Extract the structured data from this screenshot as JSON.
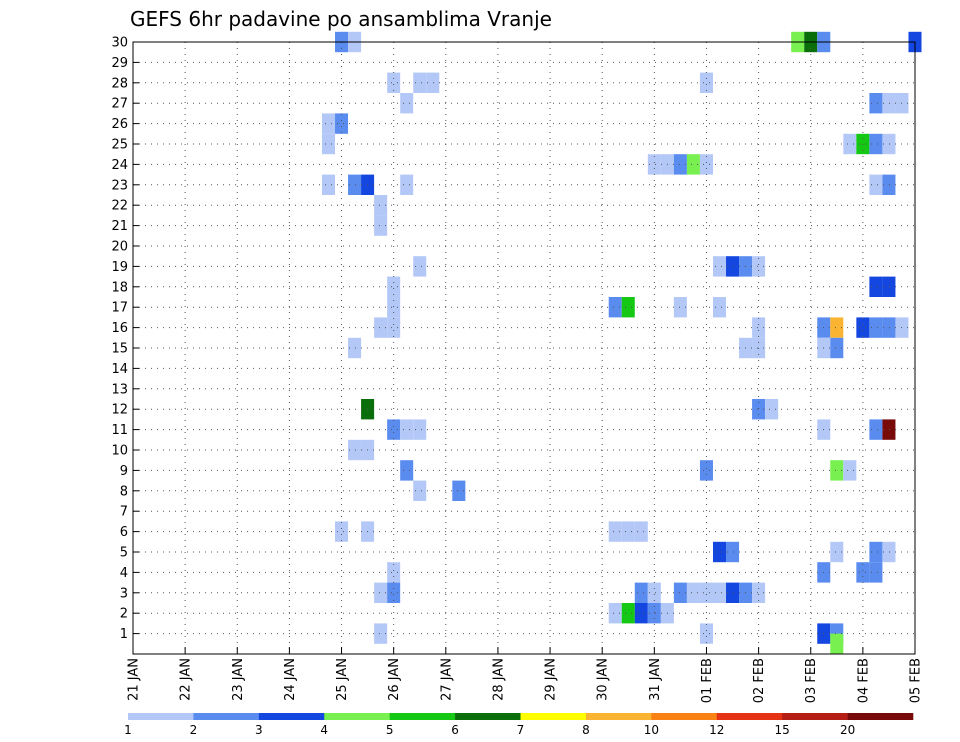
{
  "chart_data": {
    "type": "heatmap",
    "title": "GEFS 6hr padavine po ansamblima Vranje",
    "y_categories": [
      "1",
      "2",
      "3",
      "4",
      "5",
      "6",
      "7",
      "8",
      "9",
      "10",
      "11",
      "12",
      "13",
      "14",
      "15",
      "16",
      "17",
      "18",
      "19",
      "20",
      "21",
      "22",
      "23",
      "24",
      "25",
      "26",
      "27",
      "28",
      "29",
      "30"
    ],
    "x_categories": [
      "21 JAN",
      "22 JAN",
      "23 JAN",
      "24 JAN",
      "25 JAN",
      "26 JAN",
      "27 JAN",
      "28 JAN",
      "29 JAN",
      "30 JAN",
      "31 JAN",
      "01 FEB",
      "02 FEB",
      "03 FEB",
      "04 FEB",
      "05 FEB"
    ],
    "x_step": "6 hours",
    "colorbar": {
      "labels": [
        "1",
        "2",
        "3",
        "4",
        "5",
        "6",
        "7",
        "8",
        "10",
        "12",
        "15",
        "20"
      ],
      "colors": [
        "#b4c8f8",
        "#5a8cf0",
        "#1446e0",
        "#78f050",
        "#14c814",
        "#0a6e0a",
        "#ffff00",
        "#fab432",
        "#fa8214",
        "#e63214",
        "#b41e14",
        "#780a0a"
      ]
    },
    "cells": [
      {
        "y": 30,
        "x": [
          25.0,
          25.25
        ],
        "v": [
          2,
          1
        ]
      },
      {
        "y": 30,
        "x": [
          33.75,
          34.0,
          34.25
        ],
        "v": [
          4,
          6,
          2
        ]
      },
      {
        "y": 30,
        "x": [
          36.0
        ],
        "v": [
          3
        ]
      },
      {
        "y": 28,
        "x": [
          26.0,
          26.5,
          26.75
        ],
        "v": [
          1,
          1,
          1
        ]
      },
      {
        "y": 28,
        "x": [
          32.0
        ],
        "v": [
          1
        ]
      },
      {
        "y": 27,
        "x": [
          26.25
        ],
        "v": [
          1
        ]
      },
      {
        "y": 27,
        "x": [
          35.25,
          35.5,
          35.75
        ],
        "v": [
          2,
          1,
          1
        ]
      },
      {
        "y": 26,
        "x": [
          24.75,
          25.0
        ],
        "v": [
          1,
          2
        ]
      },
      {
        "y": 25,
        "x": [
          24.75
        ],
        "v": [
          1
        ]
      },
      {
        "y": 25,
        "x": [
          34.75,
          35.0,
          35.25,
          35.5
        ],
        "v": [
          1,
          5,
          2,
          1
        ]
      },
      {
        "y": 24,
        "x": [
          31.0,
          31.25,
          31.5,
          31.75,
          32.0
        ],
        "v": [
          1,
          1,
          2,
          4,
          1
        ]
      },
      {
        "y": 23,
        "x": [
          24.75,
          25.25,
          25.5,
          26.25
        ],
        "v": [
          1,
          2,
          3,
          1
        ]
      },
      {
        "y": 23,
        "x": [
          35.25,
          35.5
        ],
        "v": [
          1,
          2
        ]
      },
      {
        "y": 22,
        "x": [
          25.75
        ],
        "v": [
          1
        ]
      },
      {
        "y": 21,
        "x": [
          25.75
        ],
        "v": [
          1
        ]
      },
      {
        "y": 19,
        "x": [
          26.5
        ],
        "v": [
          1
        ]
      },
      {
        "y": 19,
        "x": [
          32.25,
          32.5,
          32.75,
          33.0
        ],
        "v": [
          1,
          3,
          2,
          1
        ]
      },
      {
        "y": 18,
        "x": [
          26.0
        ],
        "v": [
          1
        ]
      },
      {
        "y": 18,
        "x": [
          35.25,
          35.5
        ],
        "v": [
          3,
          3
        ]
      },
      {
        "y": 17,
        "x": [
          26.0,
          30.25,
          30.5,
          31.5,
          32.25
        ],
        "v": [
          1,
          2,
          5,
          1,
          1
        ]
      },
      {
        "y": 16,
        "x": [
          25.75,
          26.0
        ],
        "v": [
          1,
          1
        ]
      },
      {
        "y": 16,
        "x": [
          33.0,
          34.25,
          34.5,
          35.0,
          35.25,
          35.5,
          35.75
        ],
        "v": [
          1,
          2,
          8,
          3,
          2,
          2,
          1
        ]
      },
      {
        "y": 15,
        "x": [
          25.25
        ],
        "v": [
          1
        ]
      },
      {
        "y": 15,
        "x": [
          32.75,
          33.0,
          34.25,
          34.5
        ],
        "v": [
          1,
          1,
          1,
          2
        ]
      },
      {
        "y": 12,
        "x": [
          25.5
        ],
        "v": [
          6
        ]
      },
      {
        "y": 12,
        "x": [
          33.0,
          33.25
        ],
        "v": [
          2,
          1
        ]
      },
      {
        "y": 11,
        "x": [
          26.0,
          26.25,
          26.5
        ],
        "v": [
          2,
          1,
          1
        ]
      },
      {
        "y": 11,
        "x": [
          34.25,
          35.25,
          35.5
        ],
        "v": [
          1,
          2,
          12
        ]
      },
      {
        "y": 10,
        "x": [
          25.25,
          25.5
        ],
        "v": [
          1,
          1
        ]
      },
      {
        "y": 9,
        "x": [
          26.25,
          32.0,
          34.5,
          34.75
        ],
        "v": [
          2,
          2,
          4,
          1
        ]
      },
      {
        "y": 8,
        "x": [
          26.5,
          27.25
        ],
        "v": [
          1,
          2
        ]
      },
      {
        "y": 6,
        "x": [
          25.0,
          25.5,
          30.25,
          30.5,
          30.75
        ],
        "v": [
          1,
          1,
          1,
          1,
          1
        ]
      },
      {
        "y": 5,
        "x": [
          32.25,
          32.5,
          34.5,
          35.25,
          35.5
        ],
        "v": [
          3,
          2,
          1,
          2,
          1
        ]
      },
      {
        "y": 4,
        "x": [
          26.0,
          34.25,
          35.0,
          35.25
        ],
        "v": [
          1,
          2,
          2,
          2
        ]
      },
      {
        "y": 3,
        "x": [
          25.75,
          26.0
        ],
        "v": [
          1,
          2
        ]
      },
      {
        "y": 3,
        "x": [
          30.75,
          31.0,
          31.5,
          31.75,
          32.0,
          32.25,
          32.5,
          32.75,
          33.0
        ],
        "v": [
          2,
          1,
          2,
          1,
          1,
          1,
          3,
          2,
          1
        ]
      },
      {
        "y": 2,
        "x": [
          30.25,
          30.5,
          30.75,
          31.0,
          31.25
        ],
        "v": [
          1,
          5,
          3,
          2,
          1
        ]
      },
      {
        "y": 1,
        "x": [
          25.75,
          32.0
        ],
        "v": [
          1,
          1
        ]
      },
      {
        "y": 1,
        "x": [
          34.25,
          34.5
        ],
        "v": [
          3,
          2
        ]
      },
      {
        "y": 0.5,
        "x": [
          34.5
        ],
        "v": [
          4
        ]
      }
    ]
  }
}
